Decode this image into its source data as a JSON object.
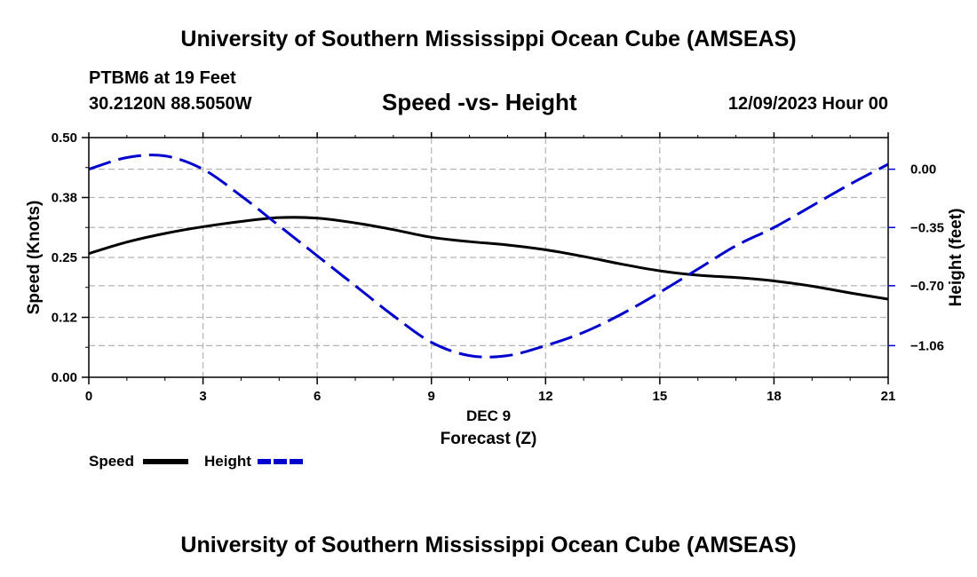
{
  "header": {
    "title": "University of Southern Mississippi Ocean Cube (AMSEAS)",
    "station_line": "PTBM6 at 19 Feet",
    "coords_line": "30.2120N  88.5050W",
    "subtitle": "Speed -vs- Height",
    "datetime": "12/09/2023 Hour 00"
  },
  "footer": {
    "title": "University of Southern Mississippi Ocean Cube (AMSEAS)"
  },
  "chart_data": {
    "type": "line",
    "title": "Speed -vs- Height",
    "xlabel": "Forecast (Z)",
    "x_sublabel": "DEC 9",
    "ylabel": "Speed (Knots)",
    "y2label": "Height (feet)",
    "xlim": [
      0,
      21
    ],
    "ylim": [
      0,
      0.5
    ],
    "y2lim": [
      -1.25,
      0.19
    ],
    "x_ticks": [
      0,
      3,
      6,
      9,
      12,
      15,
      18,
      21
    ],
    "x_tick_labels": [
      "0",
      "3",
      "6",
      "9",
      "12",
      "15",
      "18",
      "21"
    ],
    "y_ticks": [
      0.0,
      0.125,
      0.25,
      0.375,
      0.5
    ],
    "y_tick_labels": [
      "0.00",
      "0.12",
      "0.25",
      "0.38",
      "0.50"
    ],
    "y2_ticks": [
      0.0,
      -0.35,
      -0.7,
      -1.06
    ],
    "y2_tick_labels": [
      "0.00",
      "−0.35",
      "−0.70",
      "−1.06"
    ],
    "grid": true,
    "legend_placement": "bottom-left",
    "series": [
      {
        "name": "Speed",
        "axis": "left",
        "color": "#000000",
        "dash": "solid",
        "x": [
          0,
          1,
          2,
          3,
          4,
          5,
          6,
          7,
          8,
          9,
          10,
          11,
          12,
          13,
          14,
          15,
          16,
          17,
          18,
          19,
          20,
          21
        ],
        "values": [
          0.258,
          0.282,
          0.3,
          0.314,
          0.325,
          0.333,
          0.332,
          0.322,
          0.308,
          0.292,
          0.283,
          0.276,
          0.266,
          0.252,
          0.236,
          0.222,
          0.213,
          0.208,
          0.201,
          0.19,
          0.176,
          0.163
        ]
      },
      {
        "name": "Height",
        "axis": "right",
        "color": "#0000cc",
        "dash": "dashed",
        "x": [
          0,
          1,
          2,
          3,
          4,
          5,
          6,
          7,
          8,
          9,
          10,
          11,
          12,
          13,
          14,
          15,
          16,
          17,
          18,
          19,
          20,
          21
        ],
        "values": [
          0.0,
          0.07,
          0.08,
          0.0,
          -0.16,
          -0.34,
          -0.52,
          -0.7,
          -0.88,
          -1.04,
          -1.12,
          -1.12,
          -1.06,
          -0.98,
          -0.87,
          -0.74,
          -0.6,
          -0.46,
          -0.35,
          -0.22,
          -0.09,
          0.03
        ]
      }
    ]
  }
}
